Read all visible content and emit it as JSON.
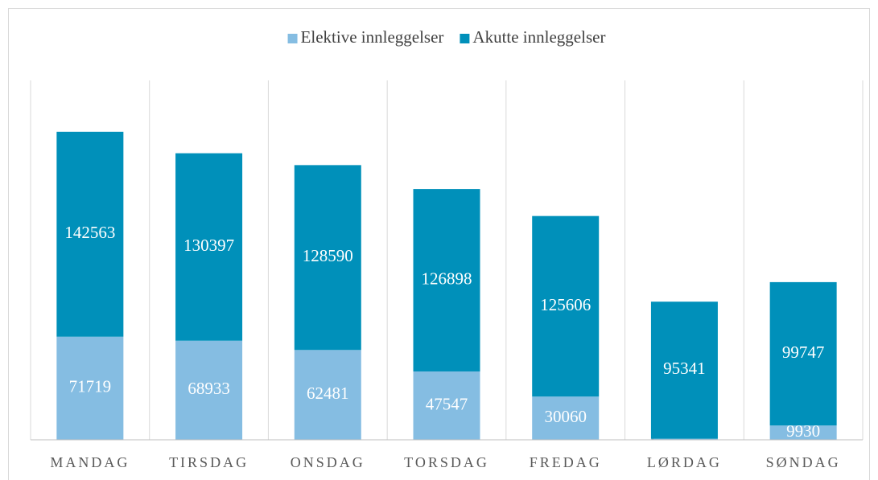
{
  "chart_data": {
    "type": "stacked-bar",
    "categories": [
      "MANDAG",
      "TIRSDAG",
      "ONSDAG",
      "TORSDAG",
      "FREDAG",
      "LØRDAG",
      "SØNDAG"
    ],
    "series": [
      {
        "name": "Elektive innleggelser",
        "color": "#85bde2",
        "values": [
          71719,
          68933,
          62481,
          47547,
          30060,
          744,
          9930
        ]
      },
      {
        "name": "Akutte innleggelser",
        "color": "#0090ba",
        "values": [
          142563,
          130397,
          128590,
          126898,
          125606,
          95341,
          99747
        ]
      }
    ],
    "ylim": [
      0,
      250000
    ],
    "legend": "top"
  }
}
